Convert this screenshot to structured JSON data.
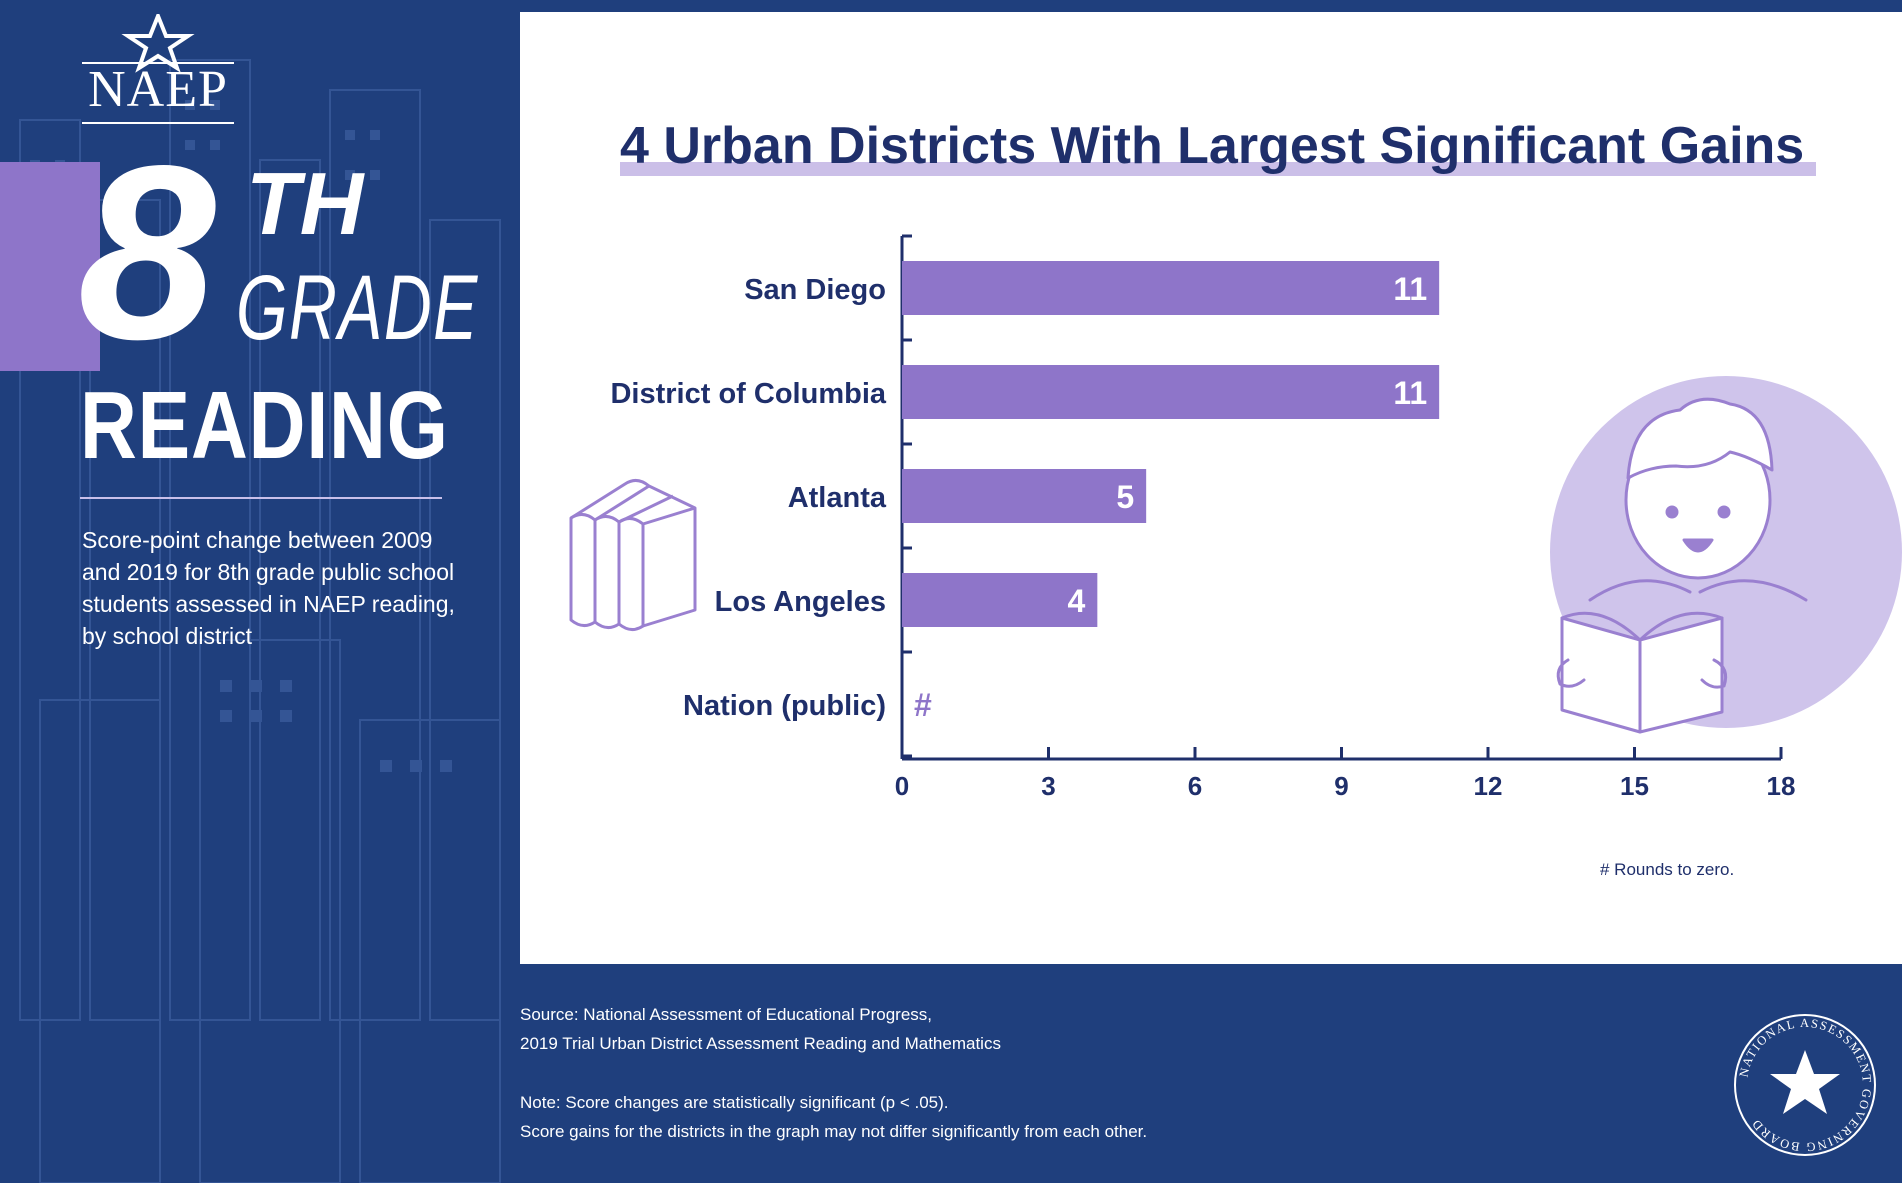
{
  "brand": {
    "logo_text": "NAEP",
    "board_seal_text": "NATIONAL ASSESSMENT GOVERNING BOARD"
  },
  "headline": {
    "grade_number": "8",
    "grade_suffix": "TH",
    "grade_word": "GRADE",
    "subject": "READING"
  },
  "description": "Score-point change between 2009 and 2019 for 8th grade public school students assessed in NAEP reading, by school district",
  "colors": {
    "background": "#1f3f7d",
    "accent_purple": "#8e75c9",
    "title_navy": "#1f2f6b"
  },
  "chart_data": {
    "type": "bar",
    "orientation": "horizontal",
    "title": "4 Urban Districts With Largest Significant Gains",
    "categories": [
      "San Diego",
      "District of Columbia",
      "Atlanta",
      "Los Angeles",
      "Nation (public)"
    ],
    "values": [
      11,
      11,
      5,
      4,
      0
    ],
    "value_labels": [
      "11",
      "11",
      "5",
      "4",
      "#"
    ],
    "xlim": [
      0,
      18
    ],
    "xticks": [
      0,
      3,
      6,
      9,
      12,
      15,
      18
    ],
    "grid": false,
    "legend": "none",
    "footnote": "# Rounds to zero."
  },
  "footer": {
    "source_line1": "Source: National Assessment of Educational Progress,",
    "source_line2": "2019 Trial Urban District Assessment Reading and Mathematics",
    "note_line1": "Note: Score changes are statistically significant (p < .05).",
    "note_line2": "Score gains for the districts in the graph may not differ significantly from each other."
  },
  "illustrations": {
    "left": "books-icon",
    "right": "child-reading-icon"
  }
}
